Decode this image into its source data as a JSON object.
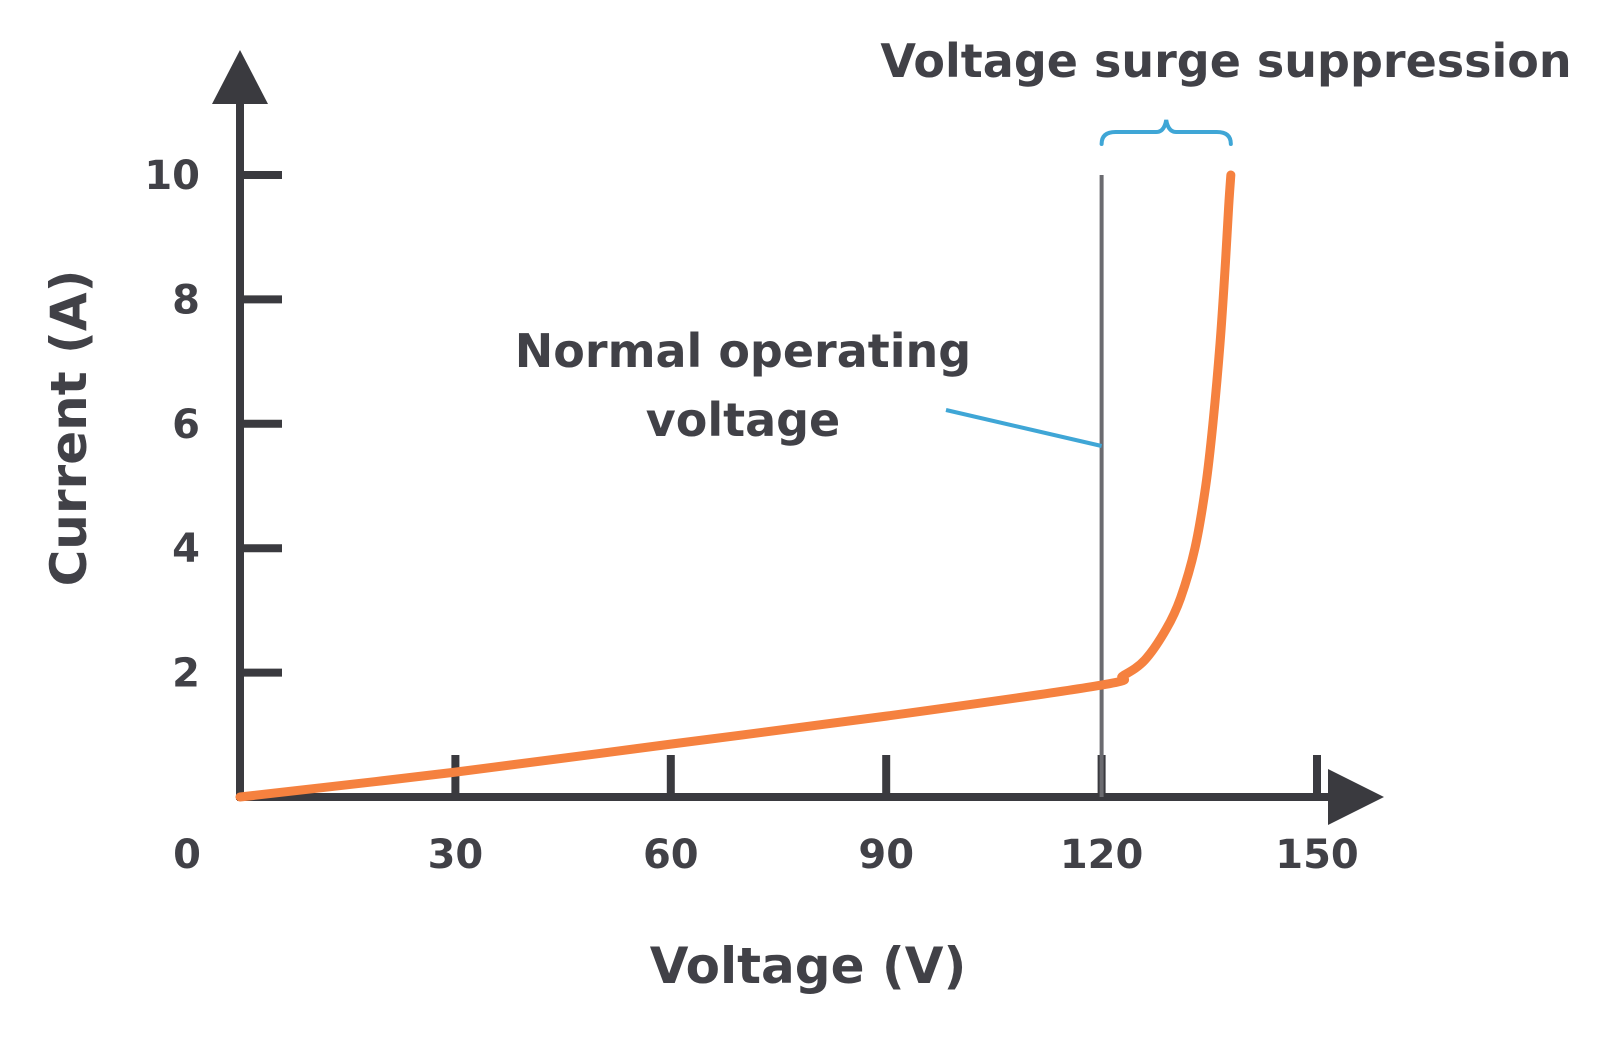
{
  "chart_data": {
    "type": "line",
    "xlabel": "Voltage (V)",
    "ylabel": "Current (A)",
    "xlim": [
      0,
      165
    ],
    "ylim": [
      0,
      11
    ],
    "x_ticks": [
      30,
      60,
      90,
      120,
      150
    ],
    "x_tick_labels": [
      "30",
      "60",
      "90",
      "120",
      "150"
    ],
    "y_ticks": [
      2,
      4,
      6,
      8,
      10
    ],
    "y_tick_labels": [
      "2",
      "4",
      "6",
      "8",
      "10"
    ],
    "origin_label": "0",
    "grid": false,
    "series": [
      {
        "color": "#f5813f",
        "x": [
          0,
          30,
          60,
          90,
          120,
          123,
          126,
          129,
          131,
          133,
          134.5,
          135.5,
          136.5,
          137.2,
          137.7,
          138
        ],
        "y": [
          0,
          0.4,
          0.85,
          1.3,
          1.8,
          1.95,
          2.2,
          2.7,
          3.2,
          4.0,
          5.0,
          6.0,
          7.3,
          8.5,
          9.5,
          10
        ]
      }
    ],
    "annotations": {
      "operating_voltage": {
        "x": 120,
        "y_top": 10,
        "label_line1": "Normal operating",
        "label_line2": "voltage",
        "line_color": "#6b6b70",
        "leader_color": "#3fa6d6"
      },
      "surge_region": {
        "x_start": 120,
        "x_end": 138,
        "label": "Voltage surge suppression",
        "brace_color": "#3fa6d6"
      }
    },
    "axis_color": "#3a3a3f"
  }
}
